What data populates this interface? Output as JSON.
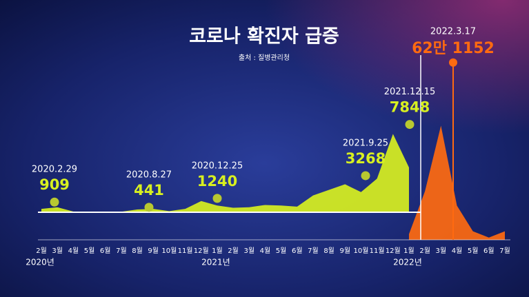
{
  "chart_data": {
    "type": "area",
    "title": "코로나 확진자 급증",
    "subtitle": "출처 : 질병관리청",
    "categories": [
      "2월",
      "3월",
      "4월",
      "5월",
      "6월",
      "7월",
      "8월",
      "9월",
      "10월",
      "11월",
      "12월",
      "1월",
      "2월",
      "3월",
      "4월",
      "5월",
      "6월",
      "7월",
      "8월",
      "9월",
      "10월",
      "11월",
      "12월",
      "1월",
      "2월",
      "3월",
      "4월",
      "5월",
      "6월",
      "7월"
    ],
    "years": [
      {
        "index": 0,
        "label": "2020년"
      },
      {
        "index": 11,
        "label": "2021년"
      },
      {
        "index": 23,
        "label": "2022년"
      }
    ],
    "series": [
      {
        "color": "#d8f020",
        "values": [
          300,
          450,
          60,
          30,
          50,
          50,
          250,
          300,
          100,
          300,
          1000,
          600,
          400,
          450,
          650,
          600,
          500,
          1500,
          2000,
          2500,
          1800,
          3000,
          7000,
          4000,
          null,
          null,
          null,
          null,
          null,
          null
        ]
      },
      {
        "color": "#ff6a10",
        "axis": "y2",
        "values": [
          null,
          null,
          null,
          null,
          null,
          null,
          null,
          null,
          null,
          null,
          null,
          null,
          null,
          null,
          null,
          null,
          null,
          null,
          null,
          null,
          null,
          null,
          null,
          20000,
          170000,
          400000,
          120000,
          30000,
          8000,
          30000
        ]
      }
    ],
    "annotations": [
      {
        "date": "2020.2.29",
        "value": 909
      },
      {
        "date": "2020.8.27",
        "value": 441
      },
      {
        "date": "2020.12.25",
        "value": 1240
      },
      {
        "date": "2021.9.25",
        "value": 3268
      },
      {
        "date": "2021.12.15",
        "value": 7848
      },
      {
        "date": "2022.3.17",
        "value": 621152,
        "value_label": "62만 1152",
        "axis": "y2"
      }
    ],
    "ylim": [
      0,
      8500
    ],
    "y2lim": [
      0,
      640000
    ]
  }
}
